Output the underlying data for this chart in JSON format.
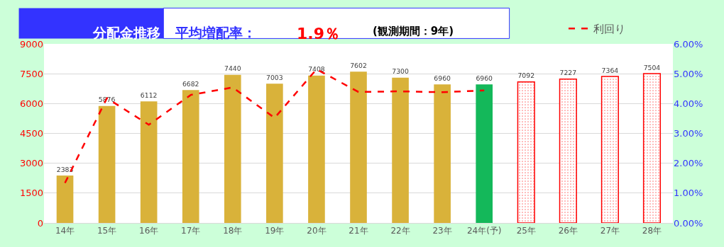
{
  "chart_data": {
    "type": "bar",
    "title": "分配金推移",
    "annotations": [
      "平均増配率：",
      "1.9％",
      "(観測期間：9年)"
    ],
    "categories": [
      "14年",
      "15年",
      "16年",
      "17年",
      "18年",
      "19年",
      "20年",
      "21年",
      "22年",
      "23年",
      "24年(予)",
      "25年",
      "26年",
      "27年",
      "28年"
    ],
    "series": [
      {
        "values": [
          2383,
          5876,
          6112,
          6682,
          7440,
          7003,
          7408,
          7602,
          7300,
          6960,
          6960,
          null,
          null,
          null,
          null
        ],
        "colors": [
          "#d9b23a",
          "#d9b23a",
          "#d9b23a",
          "#d9b23a",
          "#d9b23a",
          "#d9b23a",
          "#d9b23a",
          "#d9b23a",
          "#d9b23a",
          "#d9b23a",
          "#14b85a",
          null,
          null,
          null,
          null
        ],
        "value_labels": [
          "2383",
          "5876",
          "6112",
          "6682",
          "7440",
          "7003",
          "7408",
          "7602",
          "7300",
          "6960",
          "6960",
          null,
          null,
          null,
          null
        ]
      },
      {
        "color": "#ff0000",
        "values": [
          null,
          null,
          null,
          null,
          null,
          null,
          null,
          null,
          null,
          null,
          null,
          7092,
          7227,
          7364,
          7504
        ],
        "value_labels": [
          null,
          null,
          null,
          null,
          null,
          null,
          null,
          null,
          null,
          null,
          null,
          "7092",
          "7227",
          "7364",
          "7504"
        ]
      },
      {
        "type": "line",
        "name": "利回り",
        "color": "#ff0000",
        "axis": "y2",
        "line_style": "dashed",
        "values": [
          1.34,
          4.18,
          3.29,
          4.29,
          4.54,
          3.52,
          5.15,
          4.39,
          4.41,
          4.38,
          4.44,
          null,
          null,
          null,
          null
        ]
      }
    ],
    "ylim": [
      0,
      9000
    ],
    "yticks": [
      0,
      1500,
      3000,
      4500,
      6000,
      7500,
      9000
    ],
    "y2lim": [
      0,
      6
    ],
    "y2ticks": [
      {
        "value": 0,
        "label": "0.00%"
      },
      {
        "value": 1,
        "label": "1.00%"
      },
      {
        "value": 2,
        "label": "2.00%"
      },
      {
        "value": 3,
        "label": "3.00%"
      },
      {
        "value": 4,
        "label": "4.00%"
      },
      {
        "value": 5,
        "label": "5.00%"
      },
      {
        "value": 6,
        "label": "6.00%"
      }
    ],
    "grid": "y",
    "legend": "top right"
  }
}
